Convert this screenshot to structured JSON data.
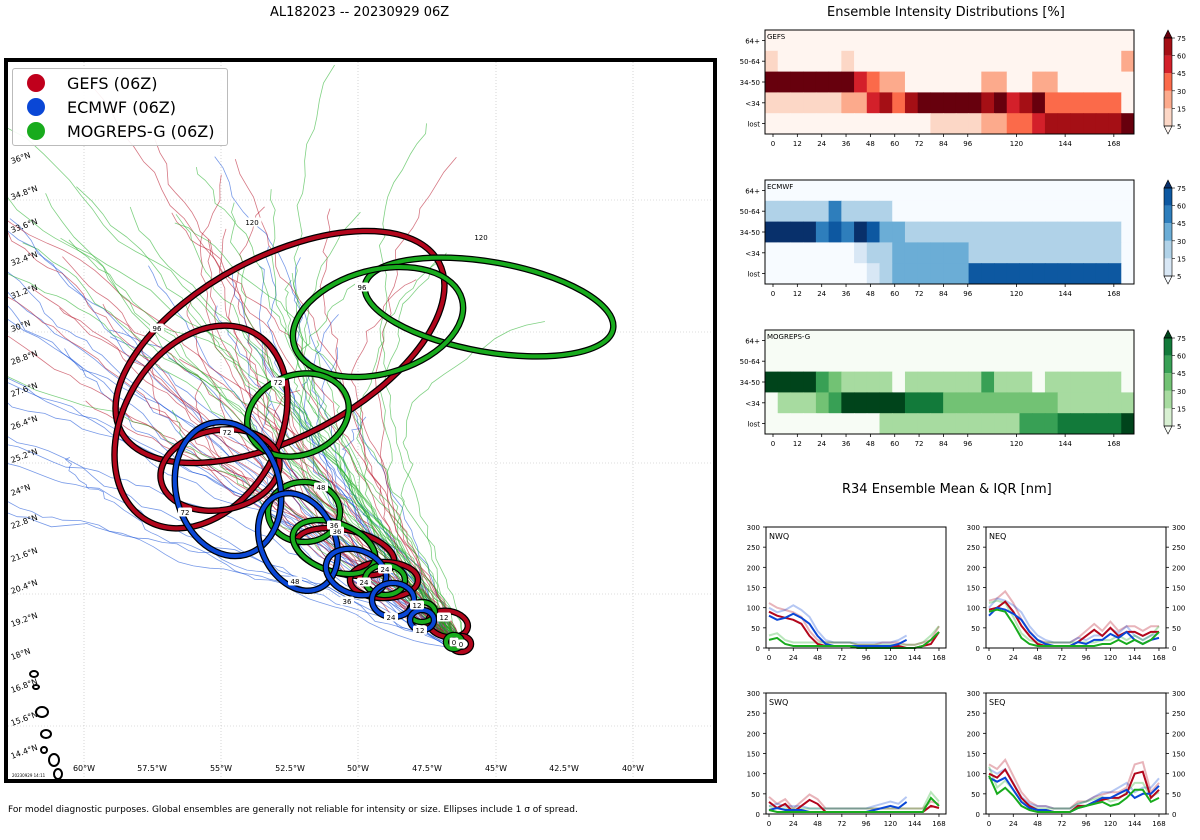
{
  "title": "AL182023 -- 20230929 06Z",
  "intensity_title": "Ensemble Intensity Distributions [%]",
  "r34_title": "R34 Ensemble Mean & IQR [nm]",
  "footnote": "For model diagnostic purposes. Global ensembles are generally not reliable for intensity or size. Ellipses include 1 σ of spread.",
  "map_stamp": "20230929 14:11",
  "colors": {
    "gefs": "#b2061c",
    "ecmwf": "#0a47d6",
    "mogreps": "#18ab1d"
  },
  "legend": [
    {
      "label": "GEFS (06Z)",
      "color": "#c0001c"
    },
    {
      "label": "ECMWF (06Z)",
      "color": "#0a47d6"
    },
    {
      "label": "MOGREPS-G (06Z)",
      "color": "#18ab1d"
    }
  ],
  "map": {
    "lat_labels": [
      "36°N",
      "34.8°N",
      "33.6°N",
      "32.4°N",
      "31.2°N",
      "30°N",
      "28.8°N",
      "27.6°N",
      "26.4°N",
      "25.2°N",
      "24°N",
      "22.8°N",
      "21.6°N",
      "20.4°N",
      "19.2°N",
      "18°N",
      "16.8°N",
      "15.6°N",
      "14.4°N"
    ],
    "lon_labels": [
      "60°W",
      "57.5°W",
      "55°W",
      "52.5°W",
      "50°W",
      "47.5°W",
      "45°W",
      "42.5°W",
      "40°W"
    ]
  },
  "chart_data": [
    {
      "type": "heatmap",
      "name": "GEFS",
      "rows": [
        "64+",
        "50-64",
        "34-50",
        "<34",
        "lost"
      ],
      "xticks": [
        "0",
        "12",
        "24",
        "36",
        "48",
        "60",
        "72",
        "84",
        "96",
        "120",
        "144",
        "168"
      ],
      "x_hours": [
        0,
        12,
        24,
        36,
        48,
        60,
        72,
        84,
        96,
        120,
        144,
        168
      ],
      "colorbar_ticks": [
        "5",
        "15",
        "30",
        "45",
        "60",
        "75"
      ],
      "values": [
        [
          0,
          0,
          0,
          0,
          0,
          0,
          0,
          0,
          0,
          0,
          0,
          0,
          0,
          0,
          0,
          0,
          0,
          0,
          0,
          0,
          0,
          0,
          0,
          0,
          0,
          0,
          0,
          0,
          0
        ],
        [
          8,
          0,
          0,
          0,
          0,
          0,
          8,
          0,
          0,
          0,
          0,
          0,
          0,
          0,
          0,
          0,
          0,
          0,
          0,
          0,
          0,
          0,
          0,
          0,
          0,
          0,
          0,
          0,
          15
        ],
        [
          85,
          85,
          85,
          85,
          85,
          85,
          85,
          55,
          40,
          25,
          25,
          0,
          0,
          0,
          0,
          0,
          0,
          15,
          15,
          0,
          0,
          15,
          15,
          0,
          0,
          0,
          0,
          0,
          0
        ],
        [
          5,
          5,
          5,
          5,
          5,
          5,
          20,
          20,
          55,
          70,
          40,
          70,
          80,
          80,
          80,
          80,
          80,
          70,
          85,
          55,
          65,
          80,
          40,
          40,
          40,
          40,
          40,
          40,
          0
        ],
        [
          0,
          0,
          0,
          0,
          0,
          0,
          0,
          0,
          0,
          0,
          0,
          0,
          0,
          8,
          8,
          8,
          8,
          20,
          20,
          40,
          40,
          55,
          60,
          60,
          60,
          60,
          60,
          60,
          85
        ]
      ]
    },
    {
      "type": "heatmap",
      "name": "ECMWF",
      "rows": [
        "64+",
        "50-64",
        "34-50",
        "<34",
        "lost"
      ],
      "xticks": [
        "0",
        "12",
        "24",
        "36",
        "48",
        "60",
        "72",
        "84",
        "96",
        "120",
        "144",
        "168"
      ],
      "x_hours": [
        0,
        12,
        24,
        36,
        48,
        60,
        72,
        84,
        96,
        120,
        144,
        168
      ],
      "colorbar_ticks": [
        "5",
        "15",
        "30",
        "45",
        "60",
        "75"
      ],
      "values": [
        [
          2,
          2,
          2,
          2,
          2,
          2,
          2,
          2,
          2,
          2,
          2,
          2,
          2,
          2,
          2,
          2,
          2,
          2,
          2,
          2,
          2,
          2,
          2,
          2,
          2,
          2,
          2,
          2,
          2
        ],
        [
          15,
          15,
          15,
          15,
          25,
          55,
          15,
          15,
          15,
          15,
          2,
          2,
          2,
          2,
          2,
          2,
          2,
          2,
          2,
          2,
          2,
          2,
          2,
          2,
          2,
          2,
          2,
          2,
          2
        ],
        [
          85,
          85,
          85,
          85,
          45,
          65,
          45,
          80,
          70,
          40,
          40,
          25,
          25,
          15,
          15,
          15,
          15,
          15,
          15,
          15,
          15,
          15,
          15,
          15,
          15,
          15,
          15,
          15,
          2
        ],
        [
          2,
          2,
          2,
          2,
          2,
          2,
          2,
          5,
          15,
          25,
          40,
          40,
          40,
          40,
          40,
          40,
          25,
          25,
          25,
          25,
          25,
          25,
          25,
          25,
          25,
          25,
          25,
          25,
          2
        ],
        [
          2,
          2,
          2,
          2,
          2,
          2,
          2,
          2,
          5,
          15,
          40,
          40,
          40,
          40,
          40,
          40,
          60,
          60,
          60,
          60,
          60,
          60,
          60,
          60,
          60,
          60,
          60,
          60,
          2
        ]
      ]
    },
    {
      "type": "heatmap",
      "name": "MOGREPS-G",
      "rows": [
        "64+",
        "50-64",
        "34-50",
        "<34",
        "lost"
      ],
      "xticks": [
        "0",
        "12",
        "24",
        "36",
        "48",
        "60",
        "72",
        "84",
        "96",
        "120",
        "144",
        "168"
      ],
      "x_hours": [
        0,
        12,
        24,
        36,
        48,
        60,
        72,
        84,
        96,
        120,
        144,
        168
      ],
      "colorbar_ticks": [
        "5",
        "15",
        "30",
        "45",
        "60",
        "75"
      ],
      "values": [
        [
          2,
          2,
          2,
          2,
          2,
          2,
          2,
          2,
          2,
          2,
          2,
          2,
          2,
          2,
          2,
          2,
          2,
          2,
          2,
          2,
          2,
          2,
          2,
          2,
          2,
          2,
          2,
          2,
          2
        ],
        [
          2,
          2,
          2,
          2,
          2,
          2,
          2,
          2,
          2,
          2,
          2,
          2,
          2,
          2,
          2,
          2,
          2,
          2,
          2,
          2,
          2,
          2,
          2,
          2,
          2,
          2,
          2,
          2,
          2
        ],
        [
          85,
          85,
          85,
          85,
          55,
          35,
          25,
          25,
          15,
          15,
          2,
          15,
          15,
          25,
          25,
          25,
          25,
          45,
          25,
          15,
          15,
          2,
          15,
          15,
          15,
          15,
          15,
          15,
          2
        ],
        [
          2,
          15,
          15,
          15,
          40,
          55,
          85,
          85,
          85,
          85,
          85,
          70,
          70,
          70,
          40,
          40,
          40,
          40,
          40,
          40,
          40,
          40,
          40,
          25,
          25,
          25,
          15,
          15,
          15
        ],
        [
          2,
          2,
          2,
          2,
          2,
          2,
          2,
          2,
          2,
          15,
          15,
          15,
          25,
          25,
          25,
          25,
          25,
          25,
          25,
          25,
          55,
          55,
          55,
          70,
          70,
          70,
          70,
          70,
          85
        ]
      ]
    },
    {
      "type": "line",
      "name": "NWQ",
      "x": [
        0,
        8,
        16,
        24,
        32,
        40,
        48,
        56,
        64,
        72,
        80,
        88,
        96,
        104,
        112,
        120,
        128,
        136,
        144,
        152,
        160,
        168
      ],
      "xticks": [
        "0",
        "24",
        "48",
        "72",
        "96",
        "120",
        "144",
        "168"
      ],
      "yticks": [
        "0",
        "50",
        "100",
        "150",
        "200",
        "250",
        "300"
      ],
      "ylim": [
        0,
        300
      ],
      "series": [
        {
          "name": "GEFS",
          "values": [
            90,
            80,
            75,
            70,
            60,
            30,
            10,
            5,
            5,
            5,
            5,
            0,
            0,
            0,
            5,
            5,
            5,
            0,
            0,
            5,
            10,
            40
          ]
        },
        {
          "name": "ECMWF",
          "values": [
            80,
            70,
            75,
            85,
            75,
            60,
            30,
            10,
            5,
            5,
            5,
            5,
            5,
            5,
            5,
            5,
            10,
            20,
            null,
            null,
            null,
            null
          ]
        },
        {
          "name": "MOGREPS-G",
          "values": [
            20,
            25,
            10,
            5,
            5,
            5,
            5,
            5,
            5,
            5,
            5,
            0,
            0,
            0,
            0,
            0,
            0,
            0,
            0,
            5,
            20,
            40
          ]
        }
      ]
    },
    {
      "type": "line",
      "name": "NEQ",
      "x": [
        0,
        8,
        16,
        24,
        32,
        40,
        48,
        56,
        64,
        72,
        80,
        88,
        96,
        104,
        112,
        120,
        128,
        136,
        144,
        152,
        160,
        168
      ],
      "xticks": [
        "0",
        "24",
        "48",
        "72",
        "96",
        "120",
        "144",
        "168"
      ],
      "yticks": [
        "0",
        "50",
        "100",
        "150",
        "200",
        "250",
        "300"
      ],
      "ylim": [
        0,
        300
      ],
      "series": [
        {
          "name": "GEFS",
          "values": [
            95,
            100,
            115,
            90,
            55,
            30,
            10,
            5,
            5,
            5,
            5,
            15,
            30,
            45,
            30,
            50,
            30,
            40,
            40,
            30,
            40,
            40
          ]
        },
        {
          "name": "ECMWF",
          "values": [
            80,
            100,
            95,
            85,
            70,
            40,
            20,
            10,
            5,
            5,
            5,
            15,
            10,
            20,
            20,
            35,
            25,
            40,
            20,
            10,
            20,
            25
          ]
        },
        {
          "name": "MOGREPS-G",
          "values": [
            90,
            95,
            90,
            60,
            25,
            10,
            5,
            5,
            5,
            5,
            5,
            5,
            5,
            5,
            10,
            10,
            20,
            10,
            20,
            10,
            20,
            40
          ]
        }
      ]
    },
    {
      "type": "line",
      "name": "SWQ",
      "x": [
        0,
        8,
        16,
        24,
        32,
        40,
        48,
        56,
        64,
        72,
        80,
        88,
        96,
        104,
        112,
        120,
        128,
        136,
        144,
        152,
        160,
        168
      ],
      "xticks": [
        "0",
        "24",
        "48",
        "72",
        "96",
        "120",
        "144",
        "168"
      ],
      "yticks": [
        "0",
        "50",
        "100",
        "150",
        "200",
        "250",
        "300"
      ],
      "ylim": [
        0,
        300
      ],
      "series": [
        {
          "name": "GEFS",
          "values": [
            30,
            15,
            25,
            5,
            20,
            35,
            25,
            5,
            5,
            5,
            5,
            5,
            5,
            5,
            5,
            5,
            5,
            5,
            5,
            5,
            20,
            15
          ]
        },
        {
          "name": "ECMWF",
          "values": [
            10,
            15,
            10,
            10,
            10,
            5,
            5,
            5,
            5,
            5,
            5,
            5,
            5,
            10,
            15,
            20,
            15,
            30,
            null,
            null,
            null,
            null
          ]
        },
        {
          "name": "MOGREPS-G",
          "values": [
            10,
            5,
            5,
            5,
            5,
            5,
            5,
            5,
            5,
            5,
            5,
            5,
            5,
            5,
            5,
            5,
            5,
            5,
            5,
            5,
            40,
            20
          ]
        }
      ]
    },
    {
      "type": "line",
      "name": "SEQ",
      "x": [
        0,
        8,
        16,
        24,
        32,
        40,
        48,
        56,
        64,
        72,
        80,
        88,
        96,
        104,
        112,
        120,
        128,
        136,
        144,
        152,
        160,
        168
      ],
      "xticks": [
        "0",
        "24",
        "48",
        "72",
        "96",
        "120",
        "144",
        "168"
      ],
      "yticks": [
        "0",
        "50",
        "100",
        "150",
        "200",
        "250",
        "300"
      ],
      "ylim": [
        0,
        300
      ],
      "series": [
        {
          "name": "GEFS",
          "values": [
            100,
            90,
            110,
            75,
            40,
            20,
            10,
            10,
            5,
            5,
            5,
            20,
            20,
            30,
            35,
            40,
            40,
            50,
            100,
            105,
            40,
            60
          ]
        },
        {
          "name": "ECMWF",
          "values": [
            90,
            80,
            90,
            60,
            30,
            15,
            10,
            10,
            5,
            5,
            5,
            15,
            20,
            30,
            40,
            40,
            50,
            60,
            40,
            50,
            50,
            70
          ]
        },
        {
          "name": "MOGREPS-G",
          "values": [
            95,
            50,
            65,
            45,
            20,
            10,
            5,
            5,
            5,
            5,
            5,
            15,
            20,
            25,
            30,
            20,
            25,
            40,
            60,
            60,
            30,
            40
          ]
        }
      ]
    }
  ]
}
